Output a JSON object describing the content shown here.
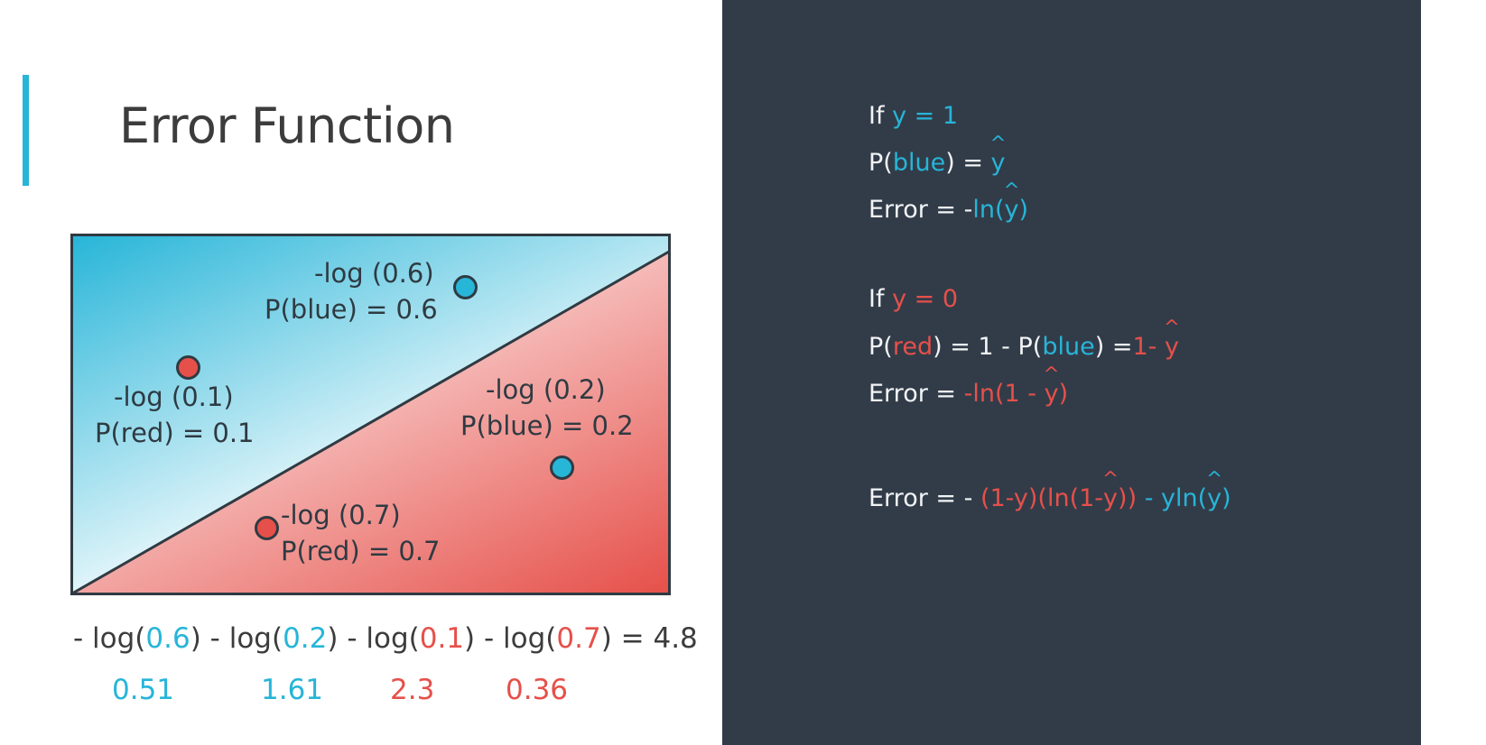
{
  "slide": {
    "title": "Error Function"
  },
  "colors": {
    "blue": "#27b5d8",
    "red": "#e6504a",
    "panel": "#323c49",
    "text": "#3c3c3c"
  },
  "diagram": {
    "labels": {
      "p1_log": "-log (0.6)",
      "p1_prob": "P(blue) = 0.6",
      "p2_log": "-log (0.1)",
      "p2_prob": "P(red) = 0.1",
      "p3_log": "-log (0.2)",
      "p3_prob": "P(blue) = 0.2",
      "p4_log": "-log (0.7)",
      "p4_prob": "P(red) = 0.7"
    }
  },
  "sum": {
    "t1": "- log(",
    "n1": "0.6",
    "t2": ") - log(",
    "n2": "0.2",
    "t3": ") - log(",
    "n3": "0.1",
    "t4": ") - log(",
    "n4": "0.7",
    "t5": ") = 4.8",
    "values": [
      "0.51",
      "1.61",
      "2.3",
      "0.36"
    ]
  },
  "formulas": {
    "case1": {
      "if_text": "If ",
      "cond": "y = 1",
      "p_open": "P(",
      "p_word": "blue",
      "p_close": ") = ",
      "p_yhat": "y",
      "err_label": "Error = -",
      "err_fn": "ln(",
      "err_y": "y",
      "err_close": ")"
    },
    "case2": {
      "if_text": "If ",
      "cond": "y = 0",
      "p_open": "P(",
      "p_word": "red",
      "p_mid": ") = 1 - P(",
      "p_word2": "blue",
      "p_eq": ") =",
      "p_one": "1- ",
      "p_yhat": "y",
      "err_label": "Error = ",
      "err_fn": "-ln(1 - ",
      "err_y": "y",
      "err_close": ")"
    },
    "combined": {
      "label": "Error = - ",
      "red_a": "(1-y)(ln(1-",
      "red_y": "y",
      "red_b": "))",
      "blue_a": " - yln(",
      "blue_y": "y",
      "blue_b": ")"
    }
  }
}
